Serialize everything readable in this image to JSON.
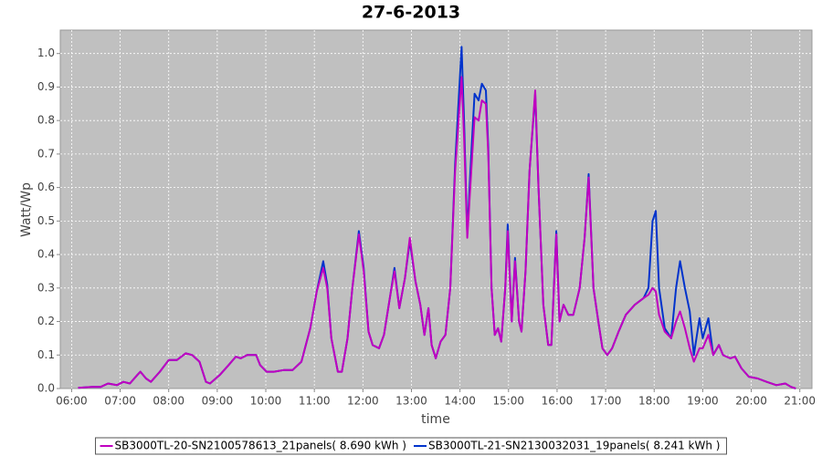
{
  "chart_data": {
    "type": "line",
    "title": "27-6-2013",
    "x_label": "time",
    "y_label": "Watt/Wp",
    "x": [
      "06:08",
      "06:25",
      "06:36",
      "06:45",
      "06:56",
      "07:04",
      "07:12",
      "07:21",
      "07:25",
      "07:32",
      "07:38",
      "07:49",
      "08:00",
      "08:10",
      "08:21",
      "08:29",
      "08:38",
      "08:46",
      "08:51",
      "09:03",
      "09:14",
      "09:23",
      "09:29",
      "09:37",
      "09:48",
      "09:53",
      "10:01",
      "10:10",
      "10:22",
      "10:33",
      "10:44",
      "10:55",
      "11:03",
      "11:11",
      "11:16",
      "11:21",
      "11:29",
      "11:34",
      "11:41",
      "11:47",
      "11:55",
      "12:01",
      "12:07",
      "12:12",
      "12:20",
      "12:26",
      "12:34",
      "12:39",
      "12:45",
      "12:52",
      "12:58",
      "13:05",
      "13:11",
      "13:16",
      "13:21",
      "13:25",
      "13:30",
      "13:36",
      "13:42",
      "13:48",
      "13:54",
      "14:02",
      "14:05",
      "14:09",
      "14:14",
      "14:18",
      "14:23",
      "14:27",
      "14:32",
      "14:35",
      "14:39",
      "14:43",
      "14:47",
      "14:51",
      "14:56",
      "14:59",
      "15:04",
      "15:08",
      "15:13",
      "15:16",
      "15:21",
      "15:26",
      "15:33",
      "15:37",
      "15:43",
      "15:49",
      "15:53",
      "15:59",
      "16:03",
      "16:08",
      "16:14",
      "16:20",
      "16:28",
      "16:34",
      "16:39",
      "16:45",
      "16:51",
      "16:56",
      "17:02",
      "17:08",
      "17:16",
      "17:25",
      "17:36",
      "17:47",
      "17:53",
      "17:58",
      "18:02",
      "18:06",
      "18:13",
      "18:21",
      "18:27",
      "18:32",
      "18:38",
      "18:44",
      "18:49",
      "18:56",
      "19:00",
      "19:07",
      "19:13",
      "19:20",
      "19:25",
      "19:34",
      "19:40",
      "19:48",
      "19:57",
      "20:08",
      "20:19",
      "20:31",
      "20:42",
      "20:49",
      "20:55"
    ],
    "series": [
      {
        "name": "SB3000TL-20-SN2100578613_21panels( 8.690 kWh )",
        "color": "#c000c0",
        "values": [
          0.002,
          0.005,
          0.005,
          0.015,
          0.01,
          0.02,
          0.015,
          0.04,
          0.05,
          0.03,
          0.02,
          0.05,
          0.085,
          0.085,
          0.105,
          0.1,
          0.08,
          0.02,
          0.015,
          0.04,
          0.07,
          0.095,
          0.09,
          0.1,
          0.1,
          0.07,
          0.05,
          0.05,
          0.055,
          0.055,
          0.08,
          0.18,
          0.29,
          0.36,
          0.3,
          0.15,
          0.05,
          0.05,
          0.15,
          0.3,
          0.46,
          0.35,
          0.17,
          0.13,
          0.12,
          0.16,
          0.28,
          0.35,
          0.24,
          0.33,
          0.45,
          0.32,
          0.25,
          0.16,
          0.24,
          0.13,
          0.09,
          0.14,
          0.16,
          0.3,
          0.65,
          0.93,
          0.75,
          0.45,
          0.65,
          0.81,
          0.8,
          0.86,
          0.85,
          0.7,
          0.3,
          0.16,
          0.18,
          0.14,
          0.3,
          0.47,
          0.2,
          0.38,
          0.2,
          0.17,
          0.35,
          0.65,
          0.89,
          0.6,
          0.25,
          0.13,
          0.13,
          0.46,
          0.2,
          0.25,
          0.22,
          0.22,
          0.3,
          0.45,
          0.63,
          0.3,
          0.2,
          0.12,
          0.1,
          0.12,
          0.17,
          0.22,
          0.25,
          0.27,
          0.28,
          0.3,
          0.29,
          0.22,
          0.17,
          0.15,
          0.2,
          0.23,
          0.18,
          0.12,
          0.08,
          0.12,
          0.12,
          0.16,
          0.1,
          0.13,
          0.1,
          0.09,
          0.095,
          0.06,
          0.035,
          0.03,
          0.02,
          0.01,
          0.015,
          0.005,
          0
        ]
      },
      {
        "name": "SB3000TL-21-SN2130032031_19panels( 8.241 kWh )",
        "color": "#0033cc",
        "values": [
          0.002,
          0.005,
          0.005,
          0.015,
          0.01,
          0.02,
          0.015,
          0.04,
          0.05,
          0.03,
          0.02,
          0.05,
          0.085,
          0.085,
          0.105,
          0.1,
          0.08,
          0.02,
          0.015,
          0.04,
          0.07,
          0.095,
          0.09,
          0.1,
          0.1,
          0.07,
          0.05,
          0.05,
          0.055,
          0.055,
          0.08,
          0.18,
          0.29,
          0.38,
          0.31,
          0.15,
          0.05,
          0.05,
          0.15,
          0.3,
          0.47,
          0.36,
          0.17,
          0.13,
          0.12,
          0.16,
          0.28,
          0.36,
          0.24,
          0.33,
          0.44,
          0.32,
          0.25,
          0.16,
          0.24,
          0.13,
          0.09,
          0.14,
          0.16,
          0.3,
          0.67,
          1.02,
          0.8,
          0.46,
          0.7,
          0.88,
          0.86,
          0.91,
          0.89,
          0.72,
          0.3,
          0.16,
          0.18,
          0.14,
          0.3,
          0.49,
          0.2,
          0.39,
          0.2,
          0.17,
          0.35,
          0.65,
          0.88,
          0.6,
          0.25,
          0.13,
          0.13,
          0.47,
          0.2,
          0.25,
          0.22,
          0.22,
          0.3,
          0.45,
          0.64,
          0.3,
          0.2,
          0.12,
          0.1,
          0.12,
          0.17,
          0.22,
          0.25,
          0.27,
          0.3,
          0.5,
          0.53,
          0.3,
          0.18,
          0.15,
          0.3,
          0.38,
          0.3,
          0.23,
          0.1,
          0.21,
          0.15,
          0.21,
          0.1,
          0.13,
          0.1,
          0.09,
          0.095,
          0.06,
          0.035,
          0.03,
          0.02,
          0.01,
          0.015,
          0.005,
          0
        ]
      }
    ],
    "xlim": [
      "05:46",
      "21:15"
    ],
    "xticks": [
      "06:00",
      "07:00",
      "08:00",
      "09:00",
      "10:00",
      "11:00",
      "12:00",
      "13:00",
      "14:00",
      "15:00",
      "16:00",
      "17:00",
      "18:00",
      "19:00",
      "20:00",
      "21:00"
    ],
    "ylim": [
      0,
      1.07
    ],
    "yticks": [
      {
        "value": 0,
        "label": "0.0"
      },
      0.1,
      0.2,
      0.3,
      0.4,
      0.5,
      0.6,
      0.7,
      0.8,
      0.9,
      {
        "value": 1,
        "label": "1.0"
      }
    ],
    "grid": true,
    "legend": "bottom"
  }
}
